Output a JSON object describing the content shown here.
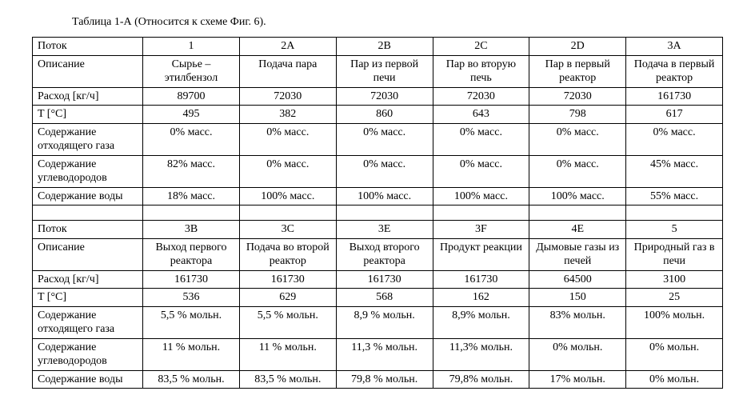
{
  "title": "Таблица 1-А (Относится к схеме Фиг. 6).",
  "columns_count": 7,
  "row_labels": {
    "stream": "Поток",
    "description": "Описание",
    "flow": "Расход [кг/ч]",
    "temp": "T [°C]",
    "offgas": "Содержание отходящего газа",
    "hc": "Содержание углеводородов",
    "water": "Содержание воды"
  },
  "section1": {
    "stream": [
      "1",
      "2A",
      "2B",
      "2C",
      "2D",
      "3A"
    ],
    "description": [
      "Сырье – этилбензол",
      "Подача пара",
      "Пар из первой печи",
      "Пар во вторую печь",
      "Пар в первый реактор",
      "Подача в первый реактор"
    ],
    "flow": [
      "89700",
      "72030",
      "72030",
      "72030",
      "72030",
      "161730"
    ],
    "temp": [
      "495",
      "382",
      "860",
      "643",
      "798",
      "617"
    ],
    "offgas": [
      "0% масс.",
      "0% масс.",
      "0% масс.",
      "0% масс.",
      "0% масс.",
      "0% масс."
    ],
    "hc": [
      "82% масс.",
      "0% масс.",
      "0% масс.",
      "0% масс.",
      "0% масс.",
      "45% масс."
    ],
    "water": [
      "18% масс.",
      "100% масс.",
      "100% масс.",
      "100% масс.",
      "100% масс.",
      "55% масс."
    ]
  },
  "section2": {
    "stream": [
      "3B",
      "3C",
      "3E",
      "3F",
      "4E",
      "5"
    ],
    "description": [
      "Выход первого реактора",
      "Подача во второй реактор",
      "Выход второго реактора",
      "Продукт реакции",
      "Дымовые газы из печей",
      "Природный газ в печи"
    ],
    "flow": [
      "161730",
      "161730",
      "161730",
      "161730",
      "64500",
      "3100"
    ],
    "temp": [
      "536",
      "629",
      "568",
      "162",
      "150",
      "25"
    ],
    "offgas": [
      "5,5 % мольн.",
      "5,5 % мольн.",
      "8,9 % мольн.",
      "8,9% мольн.",
      "83% мольн.",
      "100% мольн."
    ],
    "hc": [
      "11 % мольн.",
      "11 % мольн.",
      "11,3 % мольн.",
      "11,3% мольн.",
      "0% мольн.",
      "0% мольн."
    ],
    "water": [
      "83,5 % мольн.",
      "83,5 % мольн.",
      "79,8 % мольн.",
      "79,8% мольн.",
      "17% мольн.",
      "0% мольн."
    ]
  },
  "col_widths": [
    "16%",
    "14%",
    "14%",
    "14%",
    "14%",
    "14%",
    "14%"
  ]
}
